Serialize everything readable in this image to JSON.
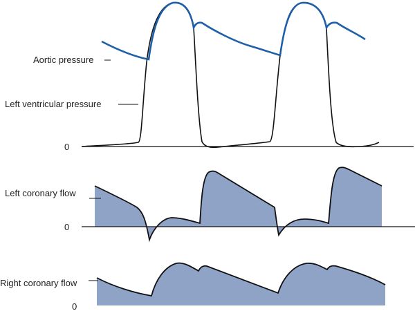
{
  "labels": {
    "aortic_pressure": "Aortic pressure",
    "lv_pressure": "Left ventricular pressure",
    "left_coronary_flow": "Left coronary flow",
    "right_coronary_flow": "Right coronary flow",
    "zero_top": "0",
    "zero_middle": "0",
    "zero_bottom": "0"
  },
  "colors": {
    "aortic_line": "#1f5fa8",
    "lv_line": "#111111",
    "flow_fill": "#8fa3c7",
    "flow_line": "#111111"
  }
}
